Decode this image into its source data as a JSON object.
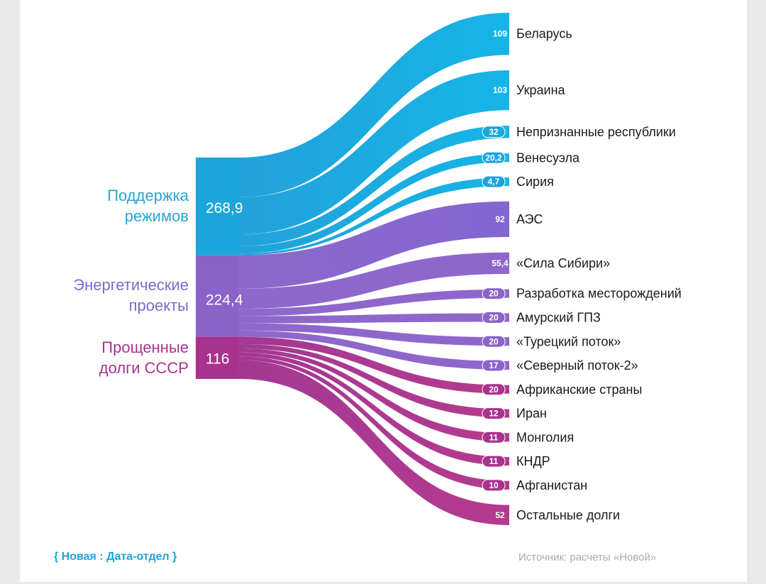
{
  "chart_data": {
    "type": "sankey",
    "sources": [
      {
        "name_lines": [
          "Поддержка",
          "режимов"
        ],
        "value_label": "268,9",
        "value": 268.9,
        "color": "#1aa6db",
        "label_color": "#2aa3d6"
      },
      {
        "name_lines": [
          "Энергетические",
          "проекты"
        ],
        "value_label": "224,4",
        "value": 224.4,
        "color": "#8a63c9",
        "label_color": "#7a6ccc"
      },
      {
        "name_lines": [
          "Прощенные",
          "долги СССР"
        ],
        "value_label": "116",
        "value": 116,
        "color": "#a8338e",
        "label_color": "#a8338e"
      }
    ],
    "targets": [
      {
        "name": "Беларусь",
        "value": 109,
        "value_label": "109",
        "source": 0
      },
      {
        "name": "Украина",
        "value": 103,
        "value_label": "103",
        "source": 0
      },
      {
        "name": "Непризнанные республики",
        "value": 32,
        "value_label": "32",
        "source": 0
      },
      {
        "name": "Венесуэла",
        "value": 20.2,
        "value_label": "20,2",
        "source": 0
      },
      {
        "name": "Сирия",
        "value": 4.7,
        "value_label": "4,7",
        "source": 0
      },
      {
        "name": "АЭС",
        "value": 92,
        "value_label": "92",
        "source": 1
      },
      {
        "name": "«Сила Сибири»",
        "value": 55.4,
        "value_label": "55,4",
        "source": 1
      },
      {
        "name": "Разработка месторождений",
        "value": 20,
        "value_label": "20",
        "source": 1
      },
      {
        "name": "Амурский ГПЗ",
        "value": 20,
        "value_label": "20",
        "source": 1
      },
      {
        "name": "«Турецкий поток»",
        "value": 20,
        "value_label": "20",
        "source": 1
      },
      {
        "name": "«Северный поток-2»",
        "value": 17,
        "value_label": "17",
        "source": 1
      },
      {
        "name": "Африканские страны",
        "value": 20,
        "value_label": "20",
        "source": 2
      },
      {
        "name": "Иран",
        "value": 12,
        "value_label": "12",
        "source": 2
      },
      {
        "name": "Монголия",
        "value": 11,
        "value_label": "11",
        "source": 2
      },
      {
        "name": "КНДР",
        "value": 11,
        "value_label": "11",
        "source": 2
      },
      {
        "name": "Афганистан",
        "value": 10,
        "value_label": "10",
        "source": 2
      },
      {
        "name": "Остальные долги",
        "value": 52,
        "value_label": "52",
        "source": 2
      }
    ]
  },
  "footer": {
    "brand": "{ Новая : Дата-отдел }",
    "source": "Источник: расчеты «Новой»"
  }
}
